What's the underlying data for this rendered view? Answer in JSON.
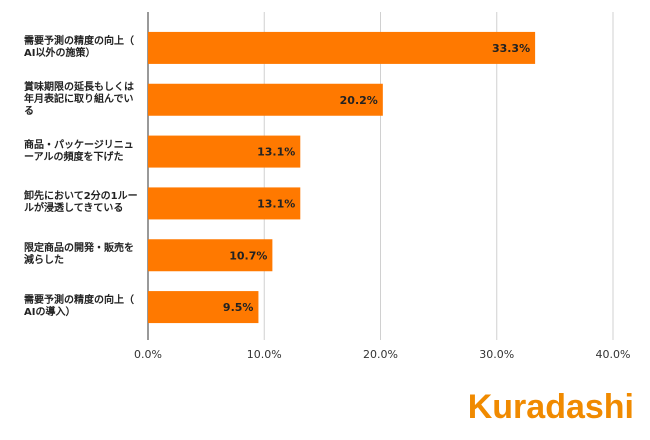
{
  "chart_data": {
    "type": "bar",
    "orientation": "horizontal",
    "categories": [
      "需要予測の精度の向上（\nAI以外の施策）",
      "賞味期限の延長もしくは\n年月表記に取り組んでい\nる",
      "商品・パッケージリニュ\nーアルの頻度を下げた",
      "卸先において2分の1ルー\nルが浸透してきている",
      "限定商品の開発・販売を\n減らした",
      "需要予測の精度の向上（\nAIの導入）"
    ],
    "values": [
      33.3,
      20.2,
      13.1,
      13.1,
      10.7,
      9.5
    ],
    "value_labels": [
      "33.3%",
      "20.2%",
      "13.1%",
      "13.1%",
      "10.7%",
      "9.5%"
    ],
    "color": "#ff7900",
    "xlim": [
      0,
      40
    ],
    "xticks": [
      {
        "value": 0,
        "label": "0.0%"
      },
      {
        "value": 10,
        "label": "10.0%"
      },
      {
        "value": 20,
        "label": "20.0%"
      },
      {
        "value": 30,
        "label": "30.0%"
      },
      {
        "value": 40,
        "label": "40.0%"
      }
    ],
    "grid": true
  },
  "logo": "Kuradashi"
}
